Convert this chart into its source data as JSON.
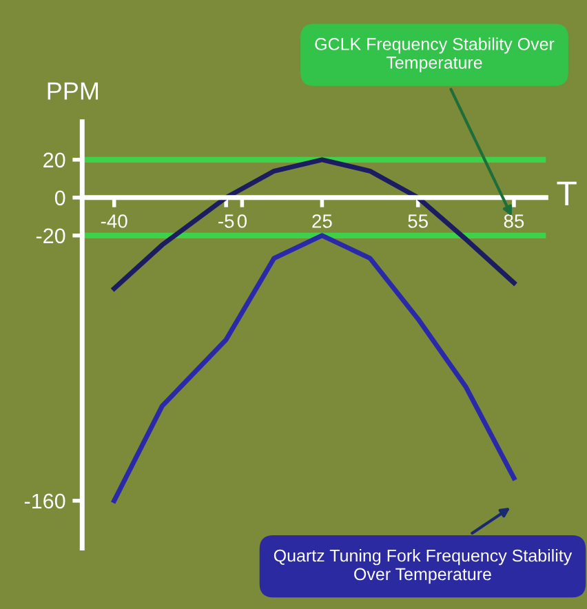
{
  "chart_data": {
    "type": "line",
    "xlabel": "T",
    "ylabel": "PPM",
    "x": [
      -40,
      -25,
      -5,
      10,
      25,
      40,
      55,
      70,
      85
    ],
    "series": [
      {
        "color": "#1c1c60",
        "values": [
          -48,
          -25,
          0,
          14,
          20,
          14,
          0,
          -22,
          -45
        ]
      },
      {
        "color": "#2a2aa8",
        "values": [
          -160,
          -110,
          -75,
          -32,
          -20,
          -32,
          -64,
          -100,
          -148
        ]
      }
    ],
    "xlim": [
      -50,
      95
    ],
    "ylim": [
      -185,
      40
    ],
    "xticks": [
      -40,
      -5,
      0,
      25,
      55,
      85
    ],
    "yticks": [
      20,
      0,
      -20,
      -160
    ],
    "ref_lines": [
      {
        "axis": "y",
        "value": 20,
        "color": "#3ed14a"
      },
      {
        "axis": "y",
        "value": -20,
        "color": "#3ed14a"
      }
    ],
    "annotations": [
      "GCLK Frequency Stability Over Temperature",
      "Quartz Tuning Fork Frequency Stability Over Temperature"
    ],
    "grid": false,
    "legend": false,
    "marker": "none",
    "line_style": "solid"
  }
}
